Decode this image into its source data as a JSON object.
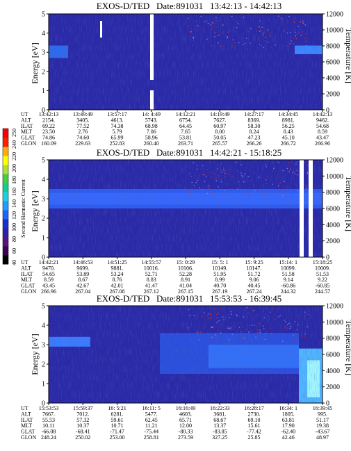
{
  "figure": {
    "colorbar": {
      "label": "Second Harmonic Current",
      "ticks": [
        "40",
        "60",
        "80",
        "100",
        "120",
        "140",
        "160",
        "180",
        "200",
        "220",
        "240",
        "250"
      ],
      "colors": [
        "#000000",
        "#3c0050",
        "#5a1080",
        "#3020a8",
        "#1830d0",
        "#1e64ff",
        "#1aa0ff",
        "#18d2e6",
        "#10d090",
        "#40d040",
        "#b0e030",
        "#ffff00",
        "#ffb000",
        "#ff2000",
        "#ff0000"
      ]
    },
    "row_labels": [
      "UT",
      "ALT",
      "ILAT",
      "MLT",
      "GLAT",
      "GLON"
    ],
    "axis_labels": {
      "energy": "Energy [eV]",
      "temperature": "Temperature [K]"
    }
  },
  "chart_data": [
    {
      "type": "heatmap",
      "title": "EXOS-D/TED   Date:891031   13:42:13 - 14:42:13",
      "ylabel": "Energy [eV]",
      "y2label": "Temperature [K]",
      "ylim": [
        0,
        5
      ],
      "y2lim": [
        0,
        12000
      ],
      "yticks": [
        "0",
        "1",
        "2",
        "3",
        "4",
        "5"
      ],
      "y2ticks": [
        "0",
        "2000",
        "4000",
        "6000",
        "8000",
        "10000",
        "12000"
      ],
      "table": {
        "UT": [
          "13:42:13",
          "13:49:49",
          "13:57:17",
          "14: 4:49",
          "14:12:21",
          "14:19:49",
          "14:27:17",
          "14:34:45",
          "14:42:13"
        ],
        "ALT": [
          "2154.",
          "3405.",
          "4613.",
          "5743.",
          "6754.",
          "7627.",
          "8369.",
          "8981.",
          "9462."
        ],
        "ILAT": [
          "69.22",
          "77.52",
          "74.38",
          "68.98",
          "64.45",
          "60.97",
          "58.30",
          "56.25",
          "54.68"
        ],
        "MLT": [
          "23.50",
          "2.76",
          "5.79",
          "7.06",
          "7.65",
          "8.00",
          "8.24",
          "8.43",
          "8.59"
        ],
        "GLAT": [
          "74.86",
          "74.60",
          "65.99",
          "58.96",
          "53.81",
          "50.05",
          "47.23",
          "45.10",
          "43.47"
        ],
        "GLON": [
          "160.09",
          "229.63",
          "252.83",
          "260.40",
          "263.71",
          "265.57",
          "266.26",
          "266.72",
          "266.96"
        ]
      }
    },
    {
      "type": "heatmap",
      "title": "EXOS-D/TED   Date:891031   14:42:21 - 15:18:25",
      "ylabel": "Energy [eV]",
      "y2label": "Temperature [K]",
      "ylim": [
        0,
        5
      ],
      "y2lim": [
        0,
        12000
      ],
      "yticks": [
        "0",
        "1",
        "2",
        "3",
        "4",
        "5"
      ],
      "y2ticks": [
        "0",
        "2000",
        "4000",
        "6000",
        "8000",
        "10000",
        "12000"
      ],
      "table": {
        "UT": [
          "14:42:21",
          "14:46:53",
          "14:51:25",
          "14:55:57",
          "15: 0:29",
          "15: 5: 1",
          "15: 9:25",
          "15:14: 1",
          "15:18:25"
        ],
        "ALT": [
          "9470.",
          "9699.",
          "9881.",
          "10016.",
          "10106.",
          "10149.",
          "10147.",
          "10099.",
          "10009."
        ],
        "ILAT": [
          "54.65",
          "53.89",
          "53.24",
          "52.71",
          "52.28",
          "51.95",
          "51.72",
          "51.58",
          "51.53"
        ],
        "MLT": [
          "8.59",
          "8.67",
          "8.76",
          "8.83",
          "8.91",
          "8.99",
          "9.06",
          "9.14",
          "9.22"
        ],
        "GLAT": [
          "43.45",
          "42.67",
          "42.01",
          "41.47",
          "41.04",
          "40.70",
          "40.45",
          "-60.86",
          "-60.85"
        ],
        "GLON": [
          "266.96",
          "267.04",
          "267.08",
          "267.12",
          "267.15",
          "267.19",
          "267.24",
          "244.32",
          "244.57"
        ]
      }
    },
    {
      "type": "heatmap",
      "title": "EXOS-D/TED   Date:891031   15:53:53 - 16:39:45",
      "ylabel": "Energy [eV]",
      "y2label": "Temperature [K]",
      "ylim": [
        0,
        5
      ],
      "y2lim": [
        0,
        12000
      ],
      "yticks": [
        "0",
        "1",
        "2",
        "3",
        "4",
        "5"
      ],
      "y2ticks": [
        "0",
        "2000",
        "4000",
        "6000",
        "8000",
        "10000",
        "12000"
      ],
      "table": {
        "UT": [
          "15:53:53",
          "15:59:37",
          "16: 5:21",
          "16:11: 5",
          "16:16:49",
          "16:22:33",
          "16:28:17",
          "16:34: 1",
          "16:39:45"
        ],
        "ALT": [
          "7667.",
          "7012.",
          "6281.",
          "5477.",
          "4603.",
          "3681.",
          "2730.",
          "1805.",
          "995."
        ],
        "ILAT": [
          "55.53",
          "57.32",
          "59.61",
          "62.45",
          "65.71",
          "68.67",
          "69.10",
          "63.81",
          "51.17"
        ],
        "MLT": [
          "10.11",
          "10.37",
          "10.71",
          "11.21",
          "12.00",
          "13.37",
          "15.61",
          "17.90",
          "19.38"
        ],
        "GLAT": [
          "-66.08",
          "-68.41",
          "-71.47",
          "-75.44",
          "-80.33",
          "-83.85",
          "-77.42",
          "-62.40",
          "-43.67"
        ],
        "GLON": [
          "248.24",
          "250.02",
          "253.00",
          "258.81",
          "273.59",
          "327.25",
          "25.85",
          "42.46",
          "48.97"
        ]
      }
    }
  ]
}
